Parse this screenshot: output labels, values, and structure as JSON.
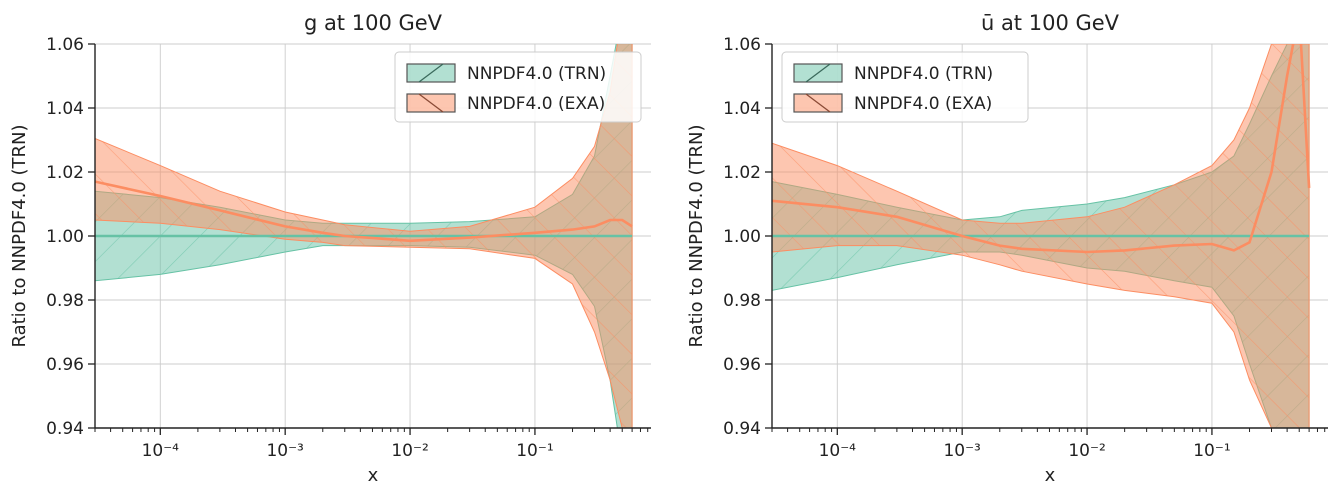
{
  "colors": {
    "trn": "#66c2a5",
    "exa": "#fc8d62",
    "grid": "#cccccc",
    "axis": "#222222"
  },
  "legend": {
    "items": [
      {
        "label": "NNPDF4.0 (TRN)",
        "series": "trn"
      },
      {
        "label": "NNPDF4.0 (EXA)",
        "series": "exa"
      }
    ]
  },
  "chart_data": [
    {
      "type": "area",
      "title": "g at 100 GeV",
      "xlabel": "x",
      "ylabel": "Ratio to NNPDF4.0 (TRN)",
      "xscale": "log",
      "xlim": [
        3e-05,
        0.85
      ],
      "ylim": [
        0.94,
        1.06
      ],
      "xticks": [
        0.0001,
        0.001,
        0.01,
        0.1
      ],
      "xtick_labels": [
        "10⁻⁴",
        "10⁻³",
        "10⁻²",
        "10⁻¹"
      ],
      "yticks": [
        0.94,
        0.96,
        0.98,
        1.0,
        1.02,
        1.04,
        1.06
      ],
      "ytick_labels": [
        "0.94",
        "0.96",
        "0.98",
        "1.00",
        "1.02",
        "1.04",
        "1.06"
      ],
      "grid": true,
      "legend_position": "top-right",
      "series": [
        {
          "name": "NNPDF4.0 (TRN)",
          "key": "trn",
          "hatch": "/",
          "x": [
            3e-05,
            0.0001,
            0.0003,
            0.001,
            0.002,
            0.003,
            0.01,
            0.03,
            0.1,
            0.2,
            0.3,
            0.4,
            0.5,
            0.6
          ],
          "central": [
            1.0,
            1.0,
            1.0,
            1.0,
            1.0,
            1.0,
            1.0,
            1.0,
            1.0,
            1.0,
            1.0,
            1.0,
            1.0,
            1.0
          ],
          "lower": [
            0.986,
            0.988,
            0.991,
            0.995,
            0.997,
            0.997,
            0.997,
            0.9965,
            0.994,
            0.988,
            0.978,
            0.955,
            0.93,
            0.94
          ],
          "upper": [
            1.014,
            1.012,
            1.009,
            1.005,
            1.004,
            1.004,
            1.004,
            1.0045,
            1.006,
            1.013,
            1.025,
            1.05,
            1.07,
            1.06
          ]
        },
        {
          "name": "NNPDF4.0 (EXA)",
          "key": "exa",
          "hatch": "\\",
          "x": [
            3e-05,
            0.0001,
            0.0003,
            0.001,
            0.002,
            0.003,
            0.01,
            0.03,
            0.1,
            0.2,
            0.3,
            0.4,
            0.5,
            0.6
          ],
          "central": [
            1.017,
            1.0125,
            1.008,
            1.003,
            1.001,
            1.0,
            0.9985,
            0.9995,
            1.001,
            1.002,
            1.003,
            1.005,
            1.005,
            1.003
          ],
          "lower": [
            1.005,
            1.004,
            1.002,
            0.999,
            0.998,
            0.997,
            0.9965,
            0.996,
            0.993,
            0.985,
            0.97,
            0.955,
            0.94,
            0.94
          ],
          "upper": [
            1.0305,
            1.022,
            1.014,
            1.0075,
            1.005,
            1.0035,
            1.0015,
            1.003,
            1.009,
            1.018,
            1.028,
            1.045,
            1.07,
            1.06
          ]
        }
      ]
    },
    {
      "type": "area",
      "title": "ū at 100 GeV",
      "xlabel": "x",
      "ylabel": "Ratio to NNPDF4.0 (TRN)",
      "xscale": "log",
      "xlim": [
        3e-05,
        0.85
      ],
      "ylim": [
        0.94,
        1.06
      ],
      "xticks": [
        0.0001,
        0.001,
        0.01,
        0.1
      ],
      "xtick_labels": [
        "10⁻⁴",
        "10⁻³",
        "10⁻²",
        "10⁻¹"
      ],
      "yticks": [
        0.94,
        0.96,
        0.98,
        1.0,
        1.02,
        1.04,
        1.06
      ],
      "ytick_labels": [
        "0.94",
        "0.96",
        "0.98",
        "1.00",
        "1.02",
        "1.04",
        "1.06"
      ],
      "grid": true,
      "legend_position": "top-left",
      "series": [
        {
          "name": "NNPDF4.0 (TRN)",
          "key": "trn",
          "hatch": "/",
          "x": [
            3e-05,
            0.0001,
            0.0003,
            0.001,
            0.002,
            0.003,
            0.01,
            0.02,
            0.05,
            0.1,
            0.15,
            0.2,
            0.3,
            0.4,
            0.6
          ],
          "central": [
            1.0,
            1.0,
            1.0,
            1.0,
            1.0,
            1.0,
            1.0,
            1.0,
            1.0,
            1.0,
            1.0,
            1.0,
            1.0,
            1.0,
            1.0
          ],
          "lower": [
            0.983,
            0.987,
            0.991,
            0.995,
            0.995,
            0.994,
            0.99,
            0.989,
            0.986,
            0.984,
            0.975,
            0.96,
            0.94,
            0.94,
            0.94
          ],
          "upper": [
            1.017,
            1.013,
            1.009,
            1.005,
            1.006,
            1.008,
            1.01,
            1.012,
            1.016,
            1.02,
            1.025,
            1.035,
            1.05,
            1.06,
            1.06
          ]
        },
        {
          "name": "NNPDF4.0 (EXA)",
          "key": "exa",
          "hatch": "\\",
          "x": [
            3e-05,
            0.0001,
            0.0003,
            0.001,
            0.002,
            0.003,
            0.01,
            0.02,
            0.05,
            0.1,
            0.15,
            0.2,
            0.3,
            0.4,
            0.5,
            0.6
          ],
          "central": [
            1.011,
            1.009,
            1.006,
            1.0,
            0.997,
            0.996,
            0.995,
            0.9955,
            0.997,
            0.9975,
            0.9955,
            0.998,
            1.02,
            1.05,
            1.07,
            1.015
          ],
          "lower": [
            0.995,
            0.997,
            0.997,
            0.994,
            0.991,
            0.989,
            0.985,
            0.983,
            0.981,
            0.979,
            0.97,
            0.955,
            0.94,
            0.94,
            0.94,
            0.94
          ],
          "upper": [
            1.029,
            1.022,
            1.014,
            1.005,
            1.004,
            1.004,
            1.006,
            1.009,
            1.016,
            1.022,
            1.03,
            1.04,
            1.06,
            1.06,
            1.06,
            1.06
          ]
        }
      ]
    }
  ]
}
